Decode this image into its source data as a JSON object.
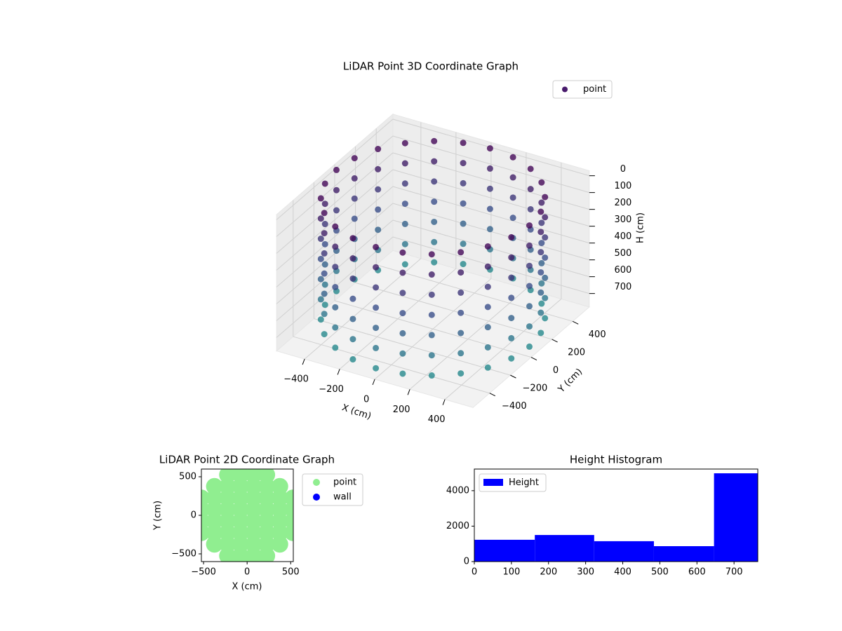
{
  "chart_data": [
    {
      "type": "scatter3d",
      "title": "LiDAR Point 3D Coordinate Graph",
      "xlabel": "X (cm)",
      "ylabel": "Y (cm)",
      "hlabel": "H (cm)",
      "xlim": [
        -560,
        560
      ],
      "ylim": [
        -560,
        560
      ],
      "hlim": [
        -30,
        780
      ],
      "h_inverted": true,
      "xticks": [
        {
          "value": -400,
          "label": "−400"
        },
        {
          "value": -200,
          "label": "−200"
        },
        0,
        200,
        400
      ],
      "yticks": [
        {
          "value": -400,
          "label": "−400"
        },
        {
          "value": -200,
          "label": "−200"
        },
        0,
        200,
        400
      ],
      "hticks": [
        0,
        100,
        200,
        300,
        400,
        500,
        600,
        700
      ],
      "grid": true,
      "legend": "upper right",
      "series": [
        {
          "name": "point",
          "color": "#481a6c",
          "colormap": [
            "#440154",
            "#3b528b",
            "#21918c"
          ],
          "x": [
            550,
            531,
            476,
            389,
            275,
            142,
            0,
            -142,
            -275,
            -389,
            -476,
            -531,
            -550,
            -531,
            -476,
            -389,
            -275,
            -142,
            0,
            142,
            275,
            389,
            476,
            531,
            550,
            531,
            476,
            389,
            275,
            142,
            0,
            -142,
            -275,
            -389,
            -476,
            -531,
            -550,
            -531,
            -476,
            -389,
            -275,
            -142,
            0,
            142,
            275,
            389,
            476,
            531,
            550,
            531,
            476,
            389,
            275,
            142,
            0,
            -142,
            -275,
            -389,
            -476,
            -531,
            -550,
            -531,
            -476,
            -389,
            -275,
            -142,
            0,
            142,
            275,
            389,
            476,
            531,
            550,
            531,
            476,
            389,
            275,
            142,
            0,
            -142,
            -275,
            -389,
            -476,
            -531,
            -550,
            -531,
            -476,
            -389,
            -275,
            -142,
            0,
            142,
            275,
            389,
            476,
            531,
            550,
            531,
            476,
            389,
            275,
            142,
            0,
            -142,
            -275,
            -389,
            -476,
            -531,
            -550,
            -531,
            -476,
            -389,
            -275,
            -142,
            0,
            142,
            275,
            389,
            476,
            531,
            550,
            531,
            476,
            389,
            275,
            142,
            0,
            -142,
            -275,
            -389,
            -476,
            -531,
            -550,
            -531,
            -476,
            -389,
            -275,
            -142,
            0,
            142,
            275,
            389,
            476,
            531,
            550,
            531,
            476,
            389,
            275,
            142,
            0,
            -142,
            -275,
            -389,
            -476,
            -531,
            -550,
            -531,
            -476,
            -389,
            -275,
            -142,
            0,
            142,
            275,
            389,
            476,
            531
          ],
          "y": [
            0,
            142,
            275,
            389,
            476,
            531,
            550,
            531,
            476,
            389,
            275,
            142,
            0,
            -142,
            -275,
            -389,
            -476,
            -531,
            -550,
            -531,
            -476,
            -389,
            -275,
            -142,
            0,
            142,
            275,
            389,
            476,
            531,
            550,
            531,
            476,
            389,
            275,
            142,
            0,
            -142,
            -275,
            -389,
            -476,
            -531,
            -550,
            -531,
            -476,
            -389,
            -275,
            -142,
            0,
            142,
            275,
            389,
            476,
            531,
            550,
            531,
            476,
            389,
            275,
            142,
            0,
            -142,
            -275,
            -389,
            -476,
            -531,
            -550,
            -531,
            -476,
            -389,
            -275,
            -142,
            0,
            142,
            275,
            389,
            476,
            531,
            550,
            531,
            476,
            389,
            275,
            142,
            0,
            -142,
            -275,
            -389,
            -476,
            -531,
            -550,
            -531,
            -476,
            -389,
            -275,
            -142,
            0,
            142,
            275,
            389,
            476,
            531,
            550,
            531,
            476,
            389,
            275,
            142,
            0,
            -142,
            -275,
            -389,
            -476,
            -531,
            -550,
            -531,
            -476,
            -389,
            -275,
            -142,
            0,
            142,
            275,
            389,
            476,
            531,
            550,
            531,
            476,
            389,
            275,
            142,
            0,
            -142,
            -275,
            -389,
            -476,
            -531,
            -550,
            -531,
            -476,
            -389,
            -275,
            -142,
            0,
            142,
            275,
            389,
            476,
            531,
            550,
            531,
            476,
            389,
            275,
            142,
            0,
            -142,
            -275,
            -389,
            -476,
            -531,
            -550,
            -531,
            -476,
            -389,
            -275,
            -142
          ],
          "h": [
            0,
            0,
            0,
            0,
            0,
            0,
            0,
            0,
            0,
            0,
            0,
            0,
            0,
            0,
            0,
            0,
            0,
            0,
            0,
            0,
            0,
            0,
            0,
            0,
            120,
            120,
            120,
            120,
            120,
            120,
            120,
            120,
            120,
            120,
            120,
            120,
            120,
            120,
            120,
            120,
            120,
            120,
            120,
            120,
            120,
            120,
            120,
            120,
            240,
            240,
            240,
            240,
            240,
            240,
            240,
            240,
            240,
            240,
            240,
            240,
            240,
            240,
            240,
            240,
            240,
            240,
            240,
            240,
            240,
            240,
            240,
            240,
            360,
            360,
            360,
            360,
            360,
            360,
            360,
            360,
            360,
            360,
            360,
            360,
            360,
            360,
            360,
            360,
            360,
            360,
            360,
            360,
            360,
            360,
            360,
            360,
            480,
            480,
            480,
            480,
            480,
            480,
            480,
            480,
            480,
            480,
            480,
            480,
            480,
            480,
            480,
            480,
            480,
            480,
            480,
            480,
            480,
            480,
            480,
            480,
            600,
            600,
            600,
            600,
            600,
            600,
            600,
            600,
            600,
            600,
            600,
            600,
            600,
            600,
            600,
            600,
            600,
            600,
            600,
            600,
            600,
            600,
            600,
            600,
            720,
            720,
            720,
            720,
            720,
            720,
            720,
            720,
            720,
            720,
            720,
            720,
            720,
            720,
            720,
            720,
            720,
            720,
            720,
            720,
            720,
            720,
            720,
            720
          ]
        }
      ]
    },
    {
      "type": "scatter",
      "title": "LiDAR Point 2D Coordinate Graph",
      "xlabel": "X (cm)",
      "ylabel": "Y (cm)",
      "xlim": [
        -525,
        530
      ],
      "ylim": [
        -600,
        600
      ],
      "xticks": [
        {
          "value": -500,
          "label": "−500"
        },
        0,
        500
      ],
      "yticks": [
        {
          "value": -500,
          "label": "−500"
        },
        0,
        500
      ],
      "legend": "outside upper right",
      "series": [
        {
          "name": "point",
          "color": "#90ee90",
          "x": [
            -225,
            -75,
            75,
            225,
            -375,
            -225,
            -75,
            75,
            225,
            375,
            -525,
            -375,
            -225,
            -75,
            75,
            225,
            375,
            525,
            -525,
            -375,
            -225,
            -75,
            75,
            225,
            375,
            525,
            -525,
            -375,
            -225,
            -75,
            75,
            225,
            375,
            525,
            -525,
            -375,
            -225,
            -75,
            75,
            225,
            375,
            525,
            -375,
            -225,
            -75,
            75,
            225,
            375,
            -225,
            -75,
            75,
            225
          ],
          "y": [
            525,
            525,
            525,
            525,
            375,
            375,
            375,
            375,
            375,
            375,
            225,
            225,
            225,
            225,
            225,
            225,
            225,
            225,
            75,
            75,
            75,
            75,
            75,
            75,
            75,
            75,
            -75,
            -75,
            -75,
            -75,
            -75,
            -75,
            -75,
            -75,
            -225,
            -225,
            -225,
            -225,
            -225,
            -225,
            -225,
            -225,
            -375,
            -375,
            -375,
            -375,
            -375,
            -375,
            -525,
            -525,
            -525,
            -525
          ]
        },
        {
          "name": "wall",
          "color": "#0000ff",
          "x": [],
          "y": []
        }
      ]
    },
    {
      "type": "histogram",
      "title": "Height Histogram",
      "bins": [
        0,
        163,
        323,
        484,
        646,
        764
      ],
      "values": [
        1230,
        1500,
        1150,
        870,
        4980
      ],
      "series_name": "Height",
      "color": "#0000ff",
      "xlim": [
        0,
        764
      ],
      "ylim": [
        0,
        5220
      ],
      "xticks": [
        0,
        100,
        200,
        300,
        400,
        500,
        600,
        700
      ],
      "yticks": [
        0,
        2000,
        4000
      ],
      "legend": "upper left"
    }
  ]
}
